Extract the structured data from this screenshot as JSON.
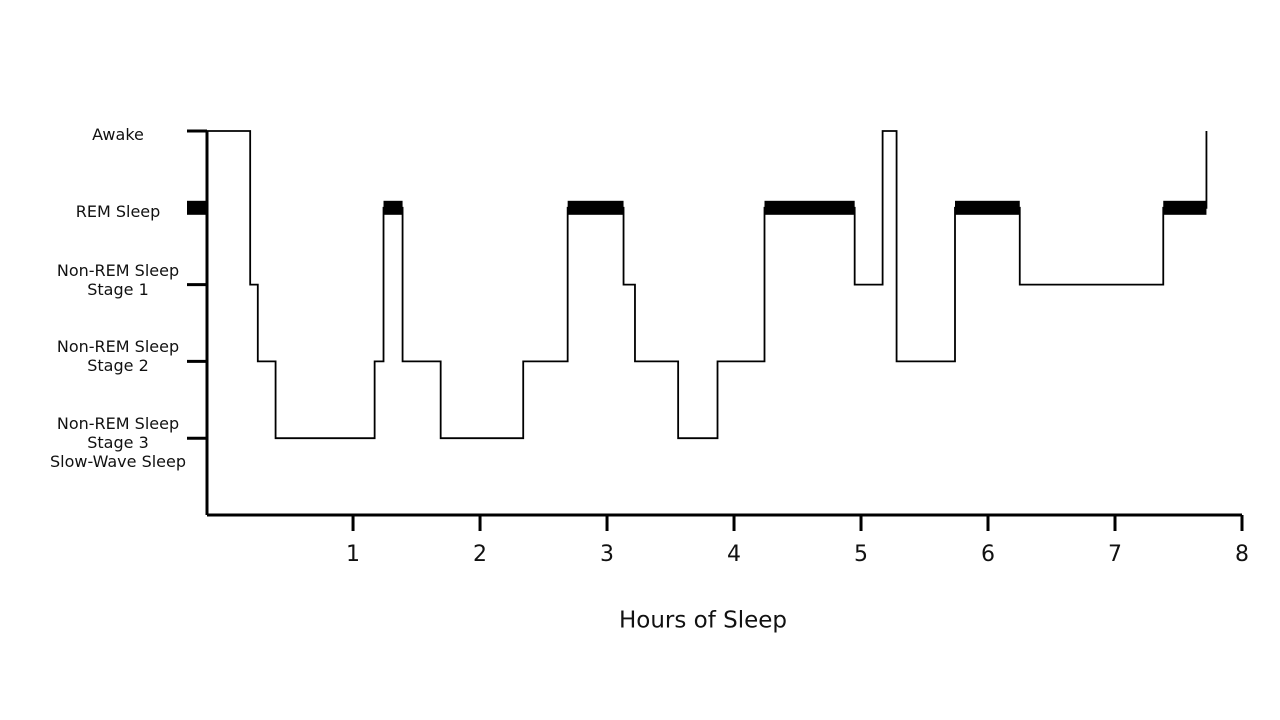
{
  "chart_data": {
    "type": "step",
    "x_label": "Hours of Sleep",
    "x": [
      -0.15,
      0.19,
      0.25,
      0.39,
      1.17,
      1.24,
      1.39,
      1.69,
      2.34,
      2.69,
      3.13,
      3.22,
      3.56,
      3.87,
      4.24,
      4.95,
      5.17,
      5.28,
      5.74,
      6.25,
      7.38,
      7.72
    ],
    "values": [
      4,
      2,
      1,
      0,
      1,
      3,
      1,
      0,
      1,
      3,
      2,
      1,
      0,
      1,
      3,
      2,
      4,
      1,
      3,
      2,
      3,
      4
    ],
    "color": "#000000",
    "highlight_level": 3,
    "xlim": [
      -0.15,
      8
    ],
    "xticks": [
      1,
      2,
      3,
      4,
      5,
      6,
      7,
      8
    ],
    "ylim": [
      -1,
      4
    ],
    "yticks": [
      {
        "value": 4,
        "label": "Awake"
      },
      {
        "value": 3,
        "label": "REM Sleep"
      },
      {
        "value": 2,
        "label": "Non-REM Sleep\nStage 1"
      },
      {
        "value": 1,
        "label": "Non-REM Sleep\nStage 2"
      },
      {
        "value": 0,
        "label": "Non-REM Sleep\nStage 3\nSlow-Wave Sleep"
      }
    ]
  }
}
